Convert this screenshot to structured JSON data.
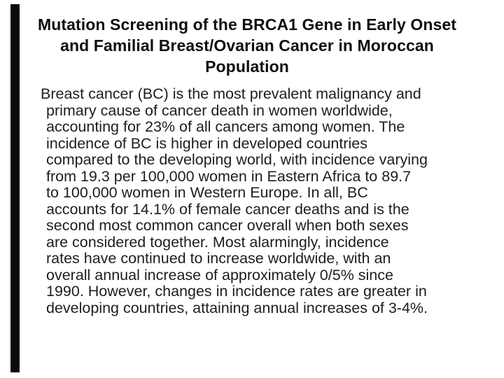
{
  "slide": {
    "title_lines": [
      "Mutation Screening of the BRCA1 Gene in Early Onset",
      "and Familial Breast/Ovarian Cancer in Moroccan",
      "Population"
    ],
    "body_lines": [
      "Breast cancer (BC) is the most prevalent malignancy and",
      "primary cause of cancer death in women worldwide,",
      "accounting for 23% of all cancers among women. The",
      "incidence of BC is higher in developed countries",
      "compared to the developing world, with incidence varying",
      "from 19.3 per 100,000 women in Eastern Africa to 89.7",
      "to 100,000 women in Western Europe. In all, BC",
      "accounts for 14.1% of female cancer deaths and is the",
      "second most common cancer overall when both sexes",
      "are considered together. Most alarmingly, incidence",
      "rates have continued to increase worldwide, with an",
      "overall annual increase of approximately 0/5% since",
      "1990. However, changes in incidence rates are greater in",
      "developing countries, attaining annual increases of 3-4%."
    ]
  },
  "colors": {
    "background": "#ffffff",
    "title_text": "#0f0f0f",
    "body_text": "#1e1e1e",
    "left_bar": "#0a0a0a"
  }
}
